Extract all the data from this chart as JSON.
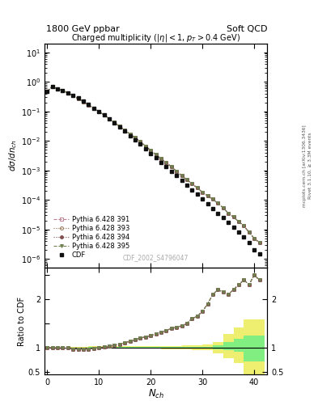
{
  "title_left": "1800 GeV ppbar",
  "title_right": "Soft QCD",
  "main_title": "Charged multiplicity (|#eta| < 1, p_{T} > 0.4 GeV)",
  "ylabel_main": "d#sigma/dn_{ch}",
  "ylabel_ratio": "Ratio to CDF",
  "xlabel": "N_{ch}",
  "watermark": "CDF_2002_S4796047",
  "right_label1": "Rivet 3.1.10, ≥ 3.3M events",
  "right_label2": "mcplots.cern.ch [arXiv:1306.3436]",
  "cdf_x": [
    0,
    1,
    2,
    3,
    4,
    5,
    6,
    7,
    8,
    9,
    10,
    11,
    12,
    13,
    14,
    15,
    16,
    17,
    18,
    19,
    20,
    21,
    22,
    23,
    24,
    25,
    26,
    27,
    28,
    29,
    30,
    31,
    32,
    33,
    34,
    35,
    36,
    37,
    38,
    39,
    40,
    41
  ],
  "cdf_y": [
    0.48,
    0.68,
    0.58,
    0.52,
    0.42,
    0.35,
    0.28,
    0.22,
    0.17,
    0.13,
    0.1,
    0.075,
    0.055,
    0.04,
    0.029,
    0.021,
    0.015,
    0.011,
    0.0078,
    0.0055,
    0.0038,
    0.0027,
    0.0019,
    0.00135,
    0.00095,
    0.00066,
    0.00046,
    0.00032,
    0.00022,
    0.000155,
    0.000105,
    7.2e-05,
    5e-05,
    3.5e-05,
    2.5e-05,
    1.7e-05,
    1.2e-05,
    8e-06,
    5.5e-06,
    3.5e-06,
    2e-06,
    1.5e-06
  ],
  "ratio391": [
    1.0,
    1.0,
    1.0,
    0.99,
    0.99,
    0.97,
    0.97,
    0.97,
    0.97,
    0.98,
    1.0,
    1.01,
    1.03,
    1.05,
    1.07,
    1.1,
    1.13,
    1.16,
    1.2,
    1.22,
    1.25,
    1.28,
    1.32,
    1.35,
    1.4,
    1.42,
    1.45,
    1.5,
    1.6,
    1.65,
    1.75,
    1.9,
    2.1,
    2.2,
    2.15,
    2.1,
    2.2,
    2.3,
    2.4,
    2.3,
    2.5,
    2.4
  ],
  "ratio393": [
    1.0,
    1.0,
    1.0,
    0.99,
    0.99,
    0.97,
    0.97,
    0.97,
    0.97,
    0.98,
    1.0,
    1.01,
    1.03,
    1.05,
    1.07,
    1.1,
    1.13,
    1.16,
    1.2,
    1.22,
    1.25,
    1.28,
    1.32,
    1.35,
    1.4,
    1.42,
    1.45,
    1.5,
    1.6,
    1.65,
    1.75,
    1.9,
    2.1,
    2.2,
    2.15,
    2.1,
    2.2,
    2.3,
    2.4,
    2.3,
    2.5,
    2.4
  ],
  "ratio394": [
    1.0,
    1.0,
    1.0,
    0.99,
    0.99,
    0.97,
    0.97,
    0.97,
    0.97,
    0.98,
    1.0,
    1.01,
    1.03,
    1.05,
    1.07,
    1.1,
    1.13,
    1.16,
    1.2,
    1.22,
    1.25,
    1.28,
    1.32,
    1.35,
    1.4,
    1.42,
    1.45,
    1.5,
    1.6,
    1.65,
    1.75,
    1.9,
    2.1,
    2.2,
    2.15,
    2.1,
    2.2,
    2.3,
    2.4,
    2.3,
    2.5,
    2.4
  ],
  "ratio395": [
    1.0,
    1.0,
    1.0,
    0.99,
    0.99,
    0.97,
    0.97,
    0.97,
    0.97,
    0.98,
    1.0,
    1.01,
    1.03,
    1.05,
    1.07,
    1.1,
    1.13,
    1.16,
    1.2,
    1.22,
    1.25,
    1.28,
    1.32,
    1.35,
    1.4,
    1.42,
    1.45,
    1.5,
    1.6,
    1.65,
    1.75,
    1.9,
    2.1,
    2.2,
    2.15,
    2.1,
    2.2,
    2.3,
    2.4,
    2.3,
    2.5,
    2.4
  ],
  "band_x": [
    0,
    2,
    4,
    6,
    8,
    10,
    12,
    14,
    16,
    18,
    20,
    22,
    24,
    26,
    28,
    30,
    32,
    34,
    36,
    38,
    40,
    42
  ],
  "band_green_lo": [
    1.0,
    1.0,
    0.995,
    0.995,
    0.99,
    0.99,
    0.99,
    0.99,
    0.99,
    0.99,
    0.99,
    0.99,
    0.985,
    0.985,
    0.985,
    0.985,
    0.97,
    0.95,
    0.91,
    0.72,
    0.72,
    0.72
  ],
  "band_green_hi": [
    1.0,
    1.0,
    1.005,
    1.005,
    1.01,
    1.01,
    1.01,
    1.01,
    1.01,
    1.01,
    1.01,
    1.01,
    1.015,
    1.015,
    1.015,
    1.015,
    1.05,
    1.12,
    1.18,
    1.25,
    1.25,
    1.25
  ],
  "band_yellow_lo": [
    1.0,
    1.0,
    0.985,
    0.985,
    0.975,
    0.975,
    0.975,
    0.975,
    0.975,
    0.975,
    0.975,
    0.97,
    0.965,
    0.96,
    0.95,
    0.94,
    0.88,
    0.78,
    0.68,
    0.45,
    0.45,
    0.45
  ],
  "band_yellow_hi": [
    1.0,
    1.0,
    1.015,
    1.015,
    1.025,
    1.025,
    1.025,
    1.025,
    1.025,
    1.025,
    1.025,
    1.03,
    1.035,
    1.04,
    1.05,
    1.06,
    1.12,
    1.28,
    1.42,
    1.58,
    1.58,
    1.58
  ],
  "color_391": "#c08090",
  "color_393": "#907050",
  "color_394": "#805050",
  "color_395": "#708050",
  "color_cdf": "#101010",
  "color_green": "#80ee80",
  "color_yellow": "#eeee70",
  "xlim": [
    -0.5,
    42.5
  ],
  "ylim_main": [
    5e-07,
    20
  ],
  "ylim_ratio": [
    0.44,
    2.65
  ]
}
